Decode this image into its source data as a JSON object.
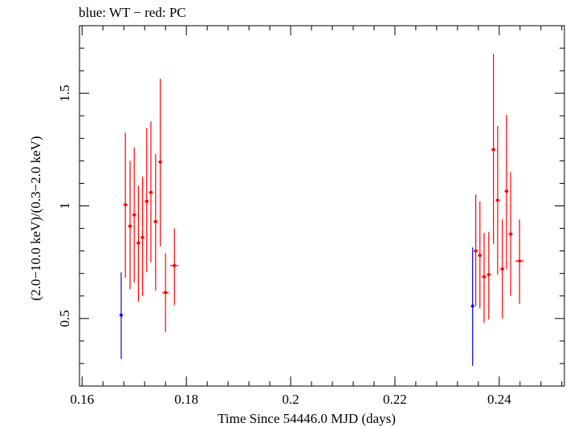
{
  "chart_data": {
    "type": "scatter",
    "title": "blue: WT − red: PC",
    "xlabel": "Time Since 54446.0 MJD (days)",
    "ylabel": "(2.0−10.0 keV)/(0.3−2.0 keV)",
    "xlim": [
      0.1595,
      0.2525
    ],
    "ylim": [
      0.2,
      1.8
    ],
    "x_ticks": [
      0.16,
      0.18,
      0.2,
      0.22,
      0.24
    ],
    "x_tick_labels": [
      "0.16",
      "0.18",
      "0.2",
      "0.22",
      "0.24"
    ],
    "y_ticks": [
      0.5,
      1,
      1.5
    ],
    "y_tick_labels": [
      "0.5",
      "1",
      "1.5"
    ],
    "grid": false,
    "series": [
      {
        "color": "#0000ff",
        "points": [
          {
            "x": 0.1675,
            "y": 0.515,
            "ylo": 0.32,
            "yhi": 0.705,
            "xerr": 0.0
          },
          {
            "x": 0.2349,
            "y": 0.555,
            "ylo": 0.29,
            "yhi": 0.815,
            "xerr": 0.0
          }
        ]
      },
      {
        "color": "#ff0000",
        "points": [
          {
            "x": 0.1683,
            "y": 1.005,
            "ylo": 0.68,
            "yhi": 1.325,
            "xerr": 0.0004
          },
          {
            "x": 0.1692,
            "y": 0.91,
            "ylo": 0.63,
            "yhi": 1.2,
            "xerr": 0.0004
          },
          {
            "x": 0.17,
            "y": 0.96,
            "ylo": 0.66,
            "yhi": 1.26,
            "xerr": 0.0004
          },
          {
            "x": 0.1708,
            "y": 0.835,
            "ylo": 0.575,
            "yhi": 1.09,
            "xerr": 0.0004
          },
          {
            "x": 0.1716,
            "y": 0.86,
            "ylo": 0.6,
            "yhi": 1.13,
            "xerr": 0.0004
          },
          {
            "x": 0.1724,
            "y": 1.02,
            "ylo": 0.705,
            "yhi": 1.345,
            "xerr": 0.0004
          },
          {
            "x": 0.1732,
            "y": 1.06,
            "ylo": 0.75,
            "yhi": 1.375,
            "xerr": 0.0004
          },
          {
            "x": 0.1741,
            "y": 0.93,
            "ylo": 0.625,
            "yhi": 1.23,
            "xerr": 0.0004
          },
          {
            "x": 0.175,
            "y": 1.195,
            "ylo": 0.82,
            "yhi": 1.565,
            "xerr": 0.0004
          },
          {
            "x": 0.176,
            "y": 0.615,
            "ylo": 0.44,
            "yhi": 0.79,
            "xerr": 0.0006
          },
          {
            "x": 0.1777,
            "y": 0.735,
            "ylo": 0.56,
            "yhi": 0.9,
            "xerr": 0.0008
          },
          {
            "x": 0.2355,
            "y": 0.8,
            "ylo": 0.555,
            "yhi": 1.05,
            "xerr": 0.0004
          },
          {
            "x": 0.2363,
            "y": 0.78,
            "ylo": 0.545,
            "yhi": 1.02,
            "xerr": 0.0004
          },
          {
            "x": 0.2371,
            "y": 0.685,
            "ylo": 0.48,
            "yhi": 0.88,
            "xerr": 0.0004
          },
          {
            "x": 0.238,
            "y": 0.695,
            "ylo": 0.495,
            "yhi": 0.885,
            "xerr": 0.0004
          },
          {
            "x": 0.2389,
            "y": 1.25,
            "ylo": 0.83,
            "yhi": 1.675,
            "xerr": 0.0004
          },
          {
            "x": 0.2397,
            "y": 1.025,
            "ylo": 0.695,
            "yhi": 1.355,
            "xerr": 0.0004
          },
          {
            "x": 0.2406,
            "y": 0.72,
            "ylo": 0.5,
            "yhi": 0.94,
            "xerr": 0.0004
          },
          {
            "x": 0.2414,
            "y": 1.065,
            "ylo": 0.72,
            "yhi": 1.405,
            "xerr": 0.0004
          },
          {
            "x": 0.2422,
            "y": 0.875,
            "ylo": 0.6,
            "yhi": 1.15,
            "xerr": 0.0004
          },
          {
            "x": 0.2439,
            "y": 0.755,
            "ylo": 0.565,
            "yhi": 0.94,
            "xerr": 0.0008
          }
        ]
      }
    ]
  }
}
